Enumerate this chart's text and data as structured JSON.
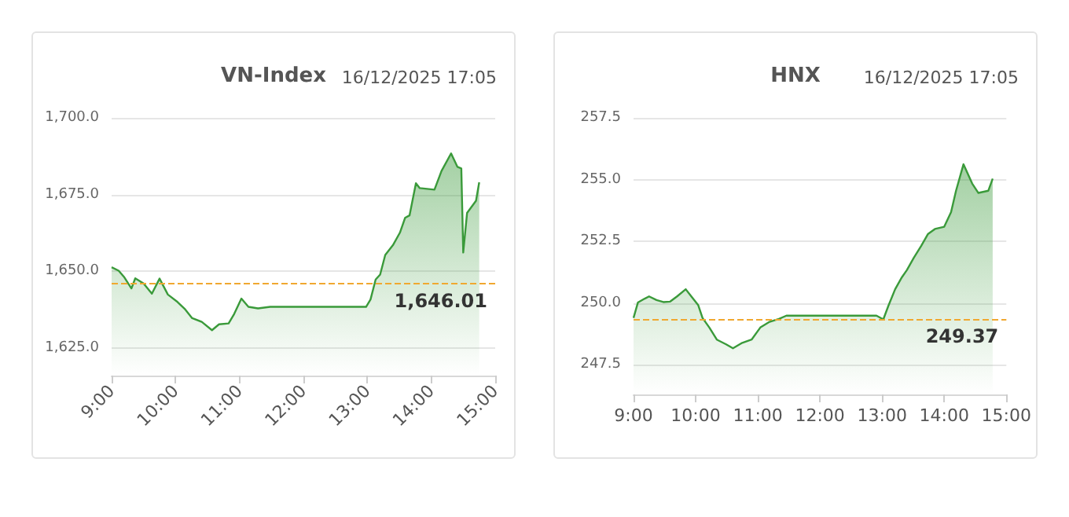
{
  "chart_data": [
    {
      "type": "area",
      "title": "VN-Index",
      "subtitle": "16/12/2025 17:05",
      "grid": "y",
      "x": [
        9.0,
        9.11,
        9.2,
        9.31,
        9.37,
        9.5,
        9.63,
        9.75,
        9.88,
        10.03,
        10.15,
        10.26,
        10.41,
        10.57,
        10.68,
        10.83,
        10.91,
        11.03,
        11.14,
        11.29,
        11.48,
        12.98,
        13.05,
        13.13,
        13.2,
        13.28,
        13.4,
        13.51,
        13.59,
        13.66,
        13.76,
        13.82,
        14.05,
        14.16,
        14.31,
        14.41,
        14.47,
        14.5,
        14.56,
        14.7,
        14.75
      ],
      "series": [
        {
          "color": "#3a9a3a",
          "values": [
            1651.3,
            1650.2,
            1648,
            1644.4,
            1647.7,
            1646,
            1642.7,
            1647.6,
            1642.4,
            1640,
            1637.6,
            1634.7,
            1633.5,
            1630.8,
            1632.7,
            1633,
            1635.8,
            1641.1,
            1638.4,
            1637.9,
            1638.4,
            1638.4,
            1640.8,
            1647.3,
            1648.9,
            1655.3,
            1658.5,
            1662.6,
            1667.4,
            1668.2,
            1678.7,
            1677.1,
            1676.6,
            1682.7,
            1688.4,
            1684,
            1683.5,
            1656.1,
            1669,
            1673,
            1679
          ]
        }
      ],
      "xlim": [
        9,
        15
      ],
      "xticks": [
        {
          "value": 9,
          "label": "9:00"
        },
        {
          "value": 10,
          "label": "10:00"
        },
        {
          "value": 11,
          "label": "11:00"
        },
        {
          "value": 12,
          "label": "12:00"
        },
        {
          "value": 13,
          "label": "13:00"
        },
        {
          "value": 14,
          "label": "14:00"
        },
        {
          "value": 15,
          "label": "15:00"
        }
      ],
      "ylim": [
        1616,
        1700
      ],
      "yticks": [
        {
          "value": 1625,
          "label": "1,625.0"
        },
        {
          "value": 1650,
          "label": "1,650.0"
        },
        {
          "value": 1675,
          "label": "1,675.0"
        },
        {
          "value": 1700,
          "label": "1,700.0"
        }
      ],
      "ref_lines": [
        {
          "axis": "y",
          "value": 1646.01,
          "label": "1,646.01",
          "color": "#f0a830",
          "line_style": "dashed"
        }
      ]
    },
    {
      "type": "area",
      "title": "HNX",
      "subtitle": "16/12/2025 17:05",
      "grid": "y",
      "x": [
        9.0,
        9.07,
        9.18,
        9.25,
        9.37,
        9.48,
        9.59,
        9.7,
        9.84,
        9.93,
        10.04,
        10.11,
        10.22,
        10.34,
        10.49,
        10.6,
        10.75,
        10.9,
        11.04,
        11.19,
        11.34,
        11.46,
        11.87,
        12.91,
        13.02,
        13.1,
        13.21,
        13.32,
        13.4,
        13.51,
        13.63,
        13.74,
        13.85,
        14.0,
        14.11,
        14.19,
        14.31,
        14.45,
        14.55,
        14.71,
        14.78
      ],
      "series": [
        {
          "color": "#3a9a3a",
          "values": [
            249.4,
            250.02,
            250.18,
            250.27,
            250.12,
            250.04,
            250.06,
            250.27,
            250.56,
            250.27,
            249.92,
            249.4,
            249.01,
            248.52,
            248.33,
            248.17,
            248.39,
            248.52,
            249.01,
            249.24,
            249.36,
            249.49,
            249.49,
            249.49,
            249.34,
            249.88,
            250.56,
            251.05,
            251.34,
            251.83,
            252.32,
            252.8,
            253.0,
            253.09,
            253.68,
            254.55,
            255.62,
            254.84,
            254.46,
            254.55,
            255.04
          ]
        }
      ],
      "xlim": [
        9,
        15
      ],
      "xticks": [
        {
          "value": 9,
          "label": "9:00"
        },
        {
          "value": 10,
          "label": "10:00"
        },
        {
          "value": 11,
          "label": "11:00"
        },
        {
          "value": 12,
          "label": "12:00"
        },
        {
          "value": 13,
          "label": "13:00"
        },
        {
          "value": 14,
          "label": "14:00"
        },
        {
          "value": 15,
          "label": "15:00"
        }
      ],
      "ylim": [
        246.3,
        257.5
      ],
      "yticks": [
        {
          "value": 247.5,
          "label": "247.5"
        },
        {
          "value": 250,
          "label": "250.0"
        },
        {
          "value": 252.5,
          "label": "252.5"
        },
        {
          "value": 255,
          "label": "255.0"
        },
        {
          "value": 257.5,
          "label": "257.5"
        }
      ],
      "ref_lines": [
        {
          "axis": "y",
          "value": 249.37,
          "label": "249.37",
          "color": "#f0a830",
          "line_style": "dashed"
        }
      ]
    }
  ]
}
